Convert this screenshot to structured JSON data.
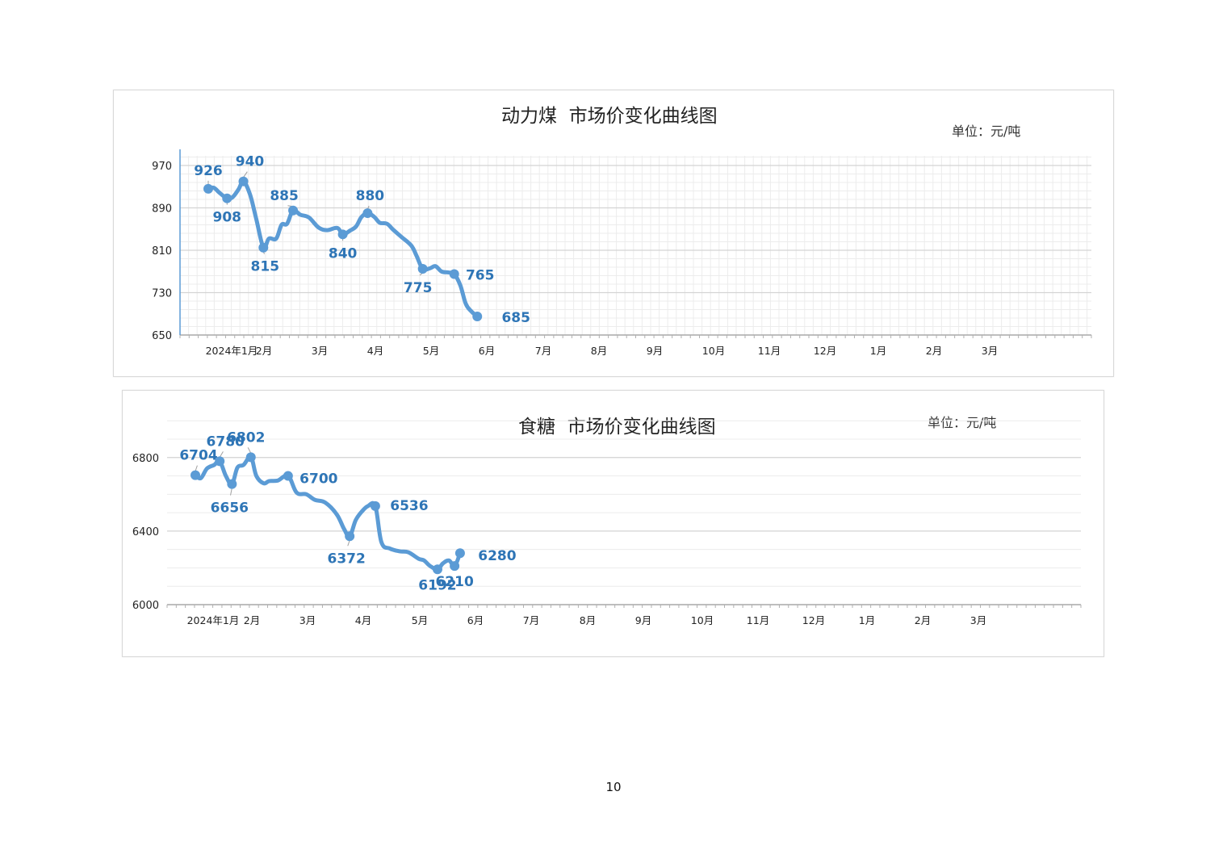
{
  "page": {
    "number": "10"
  },
  "charts": [
    {
      "title": "动力煤  市场价变化曲线图",
      "unit": "单位：元/吨"
    },
    {
      "title": "食糖  市场价变化曲线图",
      "unit": "单位：元/吨"
    }
  ],
  "colors": {
    "line": "#5b9bd5",
    "label": "#2e75b6",
    "grid_major": "#d4d4d4",
    "grid_minor": "#ececec",
    "axis_text": "#222222"
  },
  "chart_data": [
    {
      "type": "line",
      "title": "动力煤  市场价变化曲线图",
      "unit": "单位：元/吨",
      "xlabel": "",
      "ylabel": "",
      "ylim": [
        650,
        970
      ],
      "yticks": [
        650,
        730,
        810,
        890,
        970
      ],
      "grid": true,
      "minor_grid": true,
      "x_tick_labels": [
        "2024年1月",
        "2月",
        "3月",
        "4月",
        "5月",
        "6月",
        "7月",
        "8月",
        "9月",
        "10月",
        "11月",
        "12月",
        "1月",
        "2月",
        "3月"
      ],
      "series": [
        {
          "x": [
            "2024-01-01",
            "2024-01-10",
            "2024-01-20",
            "2024-02-01",
            "2024-02-10",
            "2024-02-20",
            "2024-02-28",
            "2024-03-10",
            "2024-03-20",
            "2024-04-01",
            "2024-04-10",
            "2024-04-22",
            "2024-05-01",
            "2024-05-10",
            "2024-05-20",
            "2024-06-01",
            "2024-06-15",
            "2024-07-01",
            "2024-07-15",
            "2024-08-01",
            "2024-08-10",
            "2024-08-22",
            "2024-09-01",
            "2024-09-10",
            "2024-09-20",
            "2024-10-01",
            "2024-10-10",
            "2024-10-22",
            "2024-11-01",
            "2024-11-15",
            "2024-12-01",
            "2024-12-10",
            "2024-12-20",
            "2025-01-01",
            "2025-01-10",
            "2025-01-20",
            "2025-02-01",
            "2025-02-10",
            "2025-02-20",
            "2025-03-01",
            "2025-03-10",
            "2025-03-20"
          ],
          "values": [
            926,
            928,
            918,
            908,
            910,
            925,
            940,
            915,
            870,
            815,
            832,
            832,
            858,
            860,
            885,
            877,
            872,
            853,
            848,
            852,
            840,
            847,
            855,
            873,
            880,
            873,
            862,
            860,
            849,
            835,
            819,
            799,
            775,
            776,
            780,
            770,
            768,
            765,
            744,
            709,
            695,
            685
          ]
        }
      ],
      "data_labels": [
        {
          "x": "2024-01-01",
          "value": 926,
          "text": "926"
        },
        {
          "x": "2024-02-01",
          "value": 908,
          "text": "908"
        },
        {
          "x": "2024-02-28",
          "value": 940,
          "text": "940"
        },
        {
          "x": "2024-04-01",
          "value": 815,
          "text": "815"
        },
        {
          "x": "2024-05-20",
          "value": 885,
          "text": "885"
        },
        {
          "x": "2024-08-10",
          "value": 840,
          "text": "840"
        },
        {
          "x": "2024-09-20",
          "value": 880,
          "text": "880"
        },
        {
          "x": "2024-12-20",
          "value": 775,
          "text": "775"
        },
        {
          "x": "2025-02-10",
          "value": 765,
          "text": "765"
        },
        {
          "x": "2025-03-20",
          "value": 685,
          "text": "685"
        }
      ]
    },
    {
      "type": "line",
      "title": "食糖  市场价变化曲线图",
      "unit": "单位：元/吨",
      "xlabel": "",
      "ylabel": "",
      "ylim": [
        6000,
        6900
      ],
      "yticks": [
        6000,
        6400,
        6800
      ],
      "grid": true,
      "minor_grid": false,
      "x_tick_labels": [
        "2024年1月",
        "2月",
        "3月",
        "4月",
        "5月",
        "6月",
        "7月",
        "8月",
        "9月",
        "10月",
        "11月",
        "12月",
        "1月",
        "2月",
        "3月"
      ],
      "series": [
        {
          "x": [
            "2024-01-01",
            "2024-01-10",
            "2024-01-20",
            "2024-02-01",
            "2024-02-10",
            "2024-02-20",
            "2024-03-01",
            "2024-03-10",
            "2024-03-20",
            "2024-04-01",
            "2024-04-10",
            "2024-04-22",
            "2024-05-01",
            "2024-05-15",
            "2024-06-01",
            "2024-06-15",
            "2024-07-01",
            "2024-07-15",
            "2024-08-01",
            "2024-08-20",
            "2024-09-01",
            "2024-09-10",
            "2024-09-20",
            "2024-10-01",
            "2024-10-10",
            "2024-10-22",
            "2024-11-01",
            "2024-11-15",
            "2024-12-01",
            "2024-12-15",
            "2025-01-01",
            "2025-01-10",
            "2025-01-20",
            "2025-02-01",
            "2025-02-10",
            "2025-02-20",
            "2025-03-01",
            "2025-03-10"
          ],
          "values": [
            6704,
            6688,
            6740,
            6760,
            6780,
            6700,
            6656,
            6745,
            6760,
            6802,
            6700,
            6660,
            6672,
            6675,
            6700,
            6610,
            6600,
            6570,
            6555,
            6490,
            6410,
            6372,
            6460,
            6510,
            6536,
            6536,
            6340,
            6305,
            6290,
            6285,
            6250,
            6240,
            6210,
            6192,
            6225,
            6240,
            6210,
            6280
          ]
        }
      ],
      "data_labels": [
        {
          "x": "2024-01-01",
          "value": 6704,
          "text": "6704"
        },
        {
          "x": "2024-02-10",
          "value": 6780,
          "text": "6780"
        },
        {
          "x": "2024-03-01",
          "value": 6656,
          "text": "6656"
        },
        {
          "x": "2024-04-01",
          "value": 6802,
          "text": "6802"
        },
        {
          "x": "2024-06-01",
          "value": 6700,
          "text": "6700"
        },
        {
          "x": "2024-09-10",
          "value": 6372,
          "text": "6372"
        },
        {
          "x": "2024-10-22",
          "value": 6536,
          "text": "6536"
        },
        {
          "x": "2025-02-01",
          "value": 6192,
          "text": "6192"
        },
        {
          "x": "2025-03-01",
          "value": 6210,
          "text": "6210"
        },
        {
          "x": "2025-03-10",
          "value": 6280,
          "text": "6280"
        }
      ]
    }
  ]
}
